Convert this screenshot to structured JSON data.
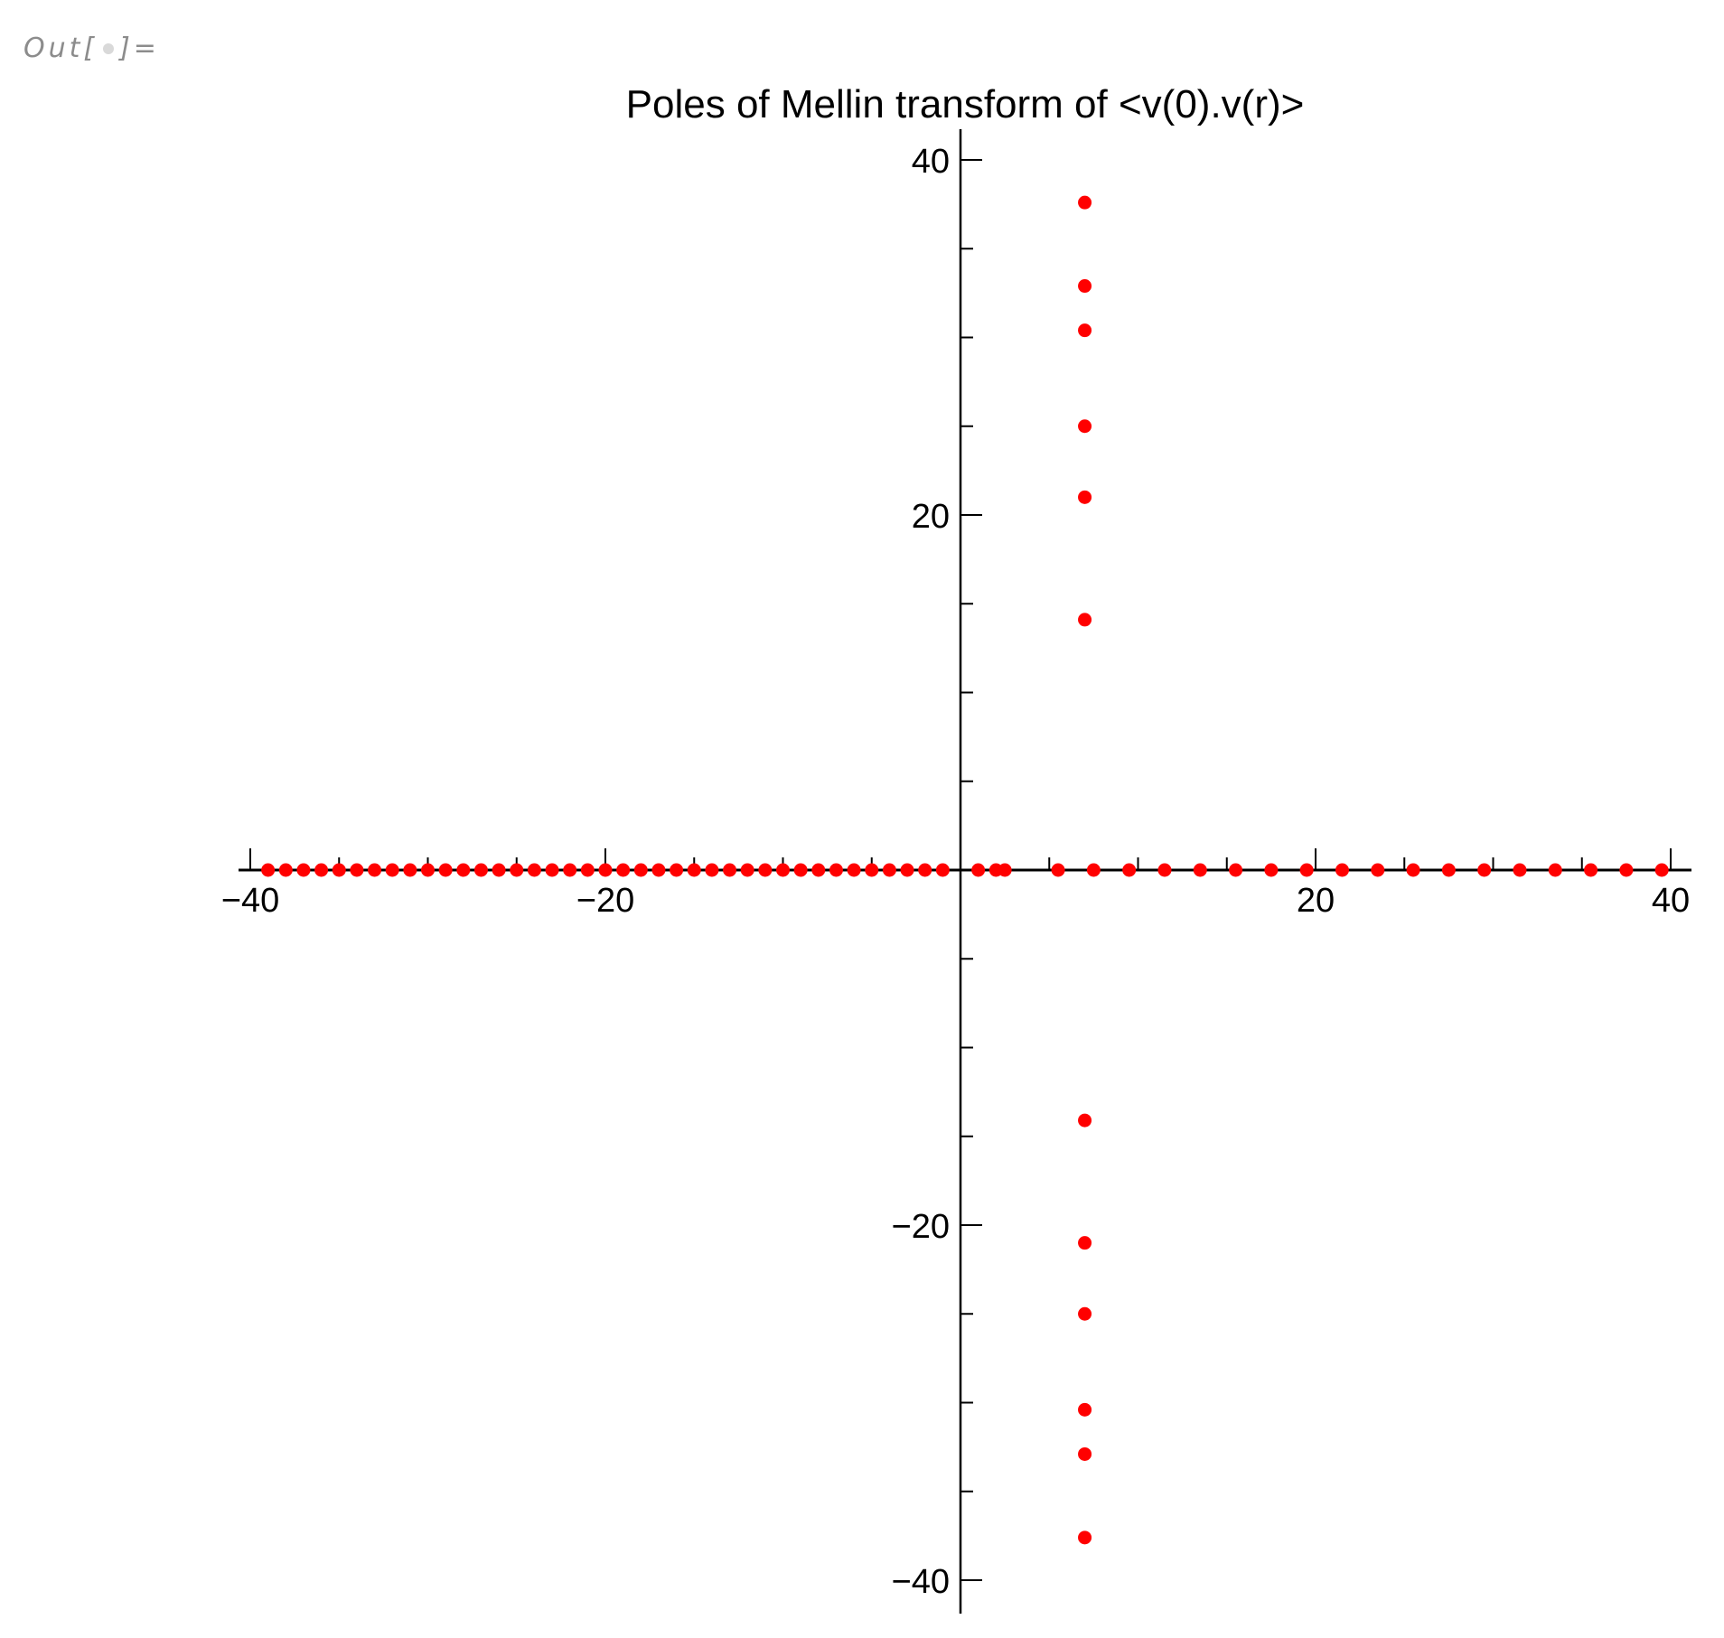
{
  "cell": {
    "out_prefix": "Out[",
    "out_suffix": "]="
  },
  "chart_data": {
    "type": "scatter",
    "title": "Poles of Mellin transform of <v(0).v(r)>",
    "xlabel": "",
    "ylabel": "",
    "xlim": [
      -40,
      40
    ],
    "ylim": [
      -40,
      40
    ],
    "x_ticks": [
      -40,
      -20,
      20,
      40
    ],
    "y_ticks": [
      40,
      20,
      -20,
      -40
    ],
    "x_tick_labels": [
      "−40",
      "−20",
      "20",
      "40"
    ],
    "y_tick_labels": [
      "40",
      "20",
      "−20",
      "−40"
    ],
    "grid": false,
    "legend": "none",
    "point_color": "#ff0000",
    "axis_color": "#000000",
    "series": [
      {
        "points": [
          [
            -39,
            0
          ],
          [
            -38,
            0
          ],
          [
            -37,
            0
          ],
          [
            -36,
            0
          ],
          [
            -35,
            0
          ],
          [
            -34,
            0
          ],
          [
            -33,
            0
          ],
          [
            -32,
            0
          ],
          [
            -31,
            0
          ],
          [
            -30,
            0
          ],
          [
            -29,
            0
          ],
          [
            -28,
            0
          ],
          [
            -27,
            0
          ],
          [
            -26,
            0
          ],
          [
            -25,
            0
          ],
          [
            -24,
            0
          ],
          [
            -23,
            0
          ],
          [
            -22,
            0
          ],
          [
            -21,
            0
          ],
          [
            -20,
            0
          ],
          [
            -19,
            0
          ],
          [
            -18,
            0
          ],
          [
            -17,
            0
          ],
          [
            -16,
            0
          ],
          [
            -15,
            0
          ],
          [
            -14,
            0
          ],
          [
            -13,
            0
          ],
          [
            -12,
            0
          ],
          [
            -11,
            0
          ],
          [
            -10,
            0
          ],
          [
            -9,
            0
          ],
          [
            -8,
            0
          ],
          [
            -7,
            0
          ],
          [
            -6,
            0
          ],
          [
            -5,
            0
          ],
          [
            -4,
            0
          ],
          [
            -3,
            0
          ],
          [
            -2,
            0
          ],
          [
            -1,
            0
          ],
          [
            1,
            0
          ],
          [
            2,
            0
          ],
          [
            2.5,
            0
          ],
          [
            5.5,
            0
          ],
          [
            7.5,
            0
          ],
          [
            9.5,
            0
          ],
          [
            11.5,
            0
          ],
          [
            13.5,
            0
          ],
          [
            15.5,
            0
          ],
          [
            17.5,
            0
          ],
          [
            19.5,
            0
          ],
          [
            21.5,
            0
          ],
          [
            23.5,
            0
          ],
          [
            25.5,
            0
          ],
          [
            27.5,
            0
          ],
          [
            29.5,
            0
          ],
          [
            31.5,
            0
          ],
          [
            33.5,
            0
          ],
          [
            35.5,
            0
          ],
          [
            37.5,
            0
          ],
          [
            39.5,
            0
          ],
          [
            7,
            37.6
          ],
          [
            7,
            32.9
          ],
          [
            7,
            30.4
          ],
          [
            7,
            25.0
          ],
          [
            7,
            21.0
          ],
          [
            7,
            14.1
          ],
          [
            7,
            -14.1
          ],
          [
            7,
            -21.0
          ],
          [
            7,
            -25.0
          ],
          [
            7,
            -30.4
          ],
          [
            7,
            -32.9
          ],
          [
            7,
            -37.6
          ]
        ]
      }
    ]
  }
}
